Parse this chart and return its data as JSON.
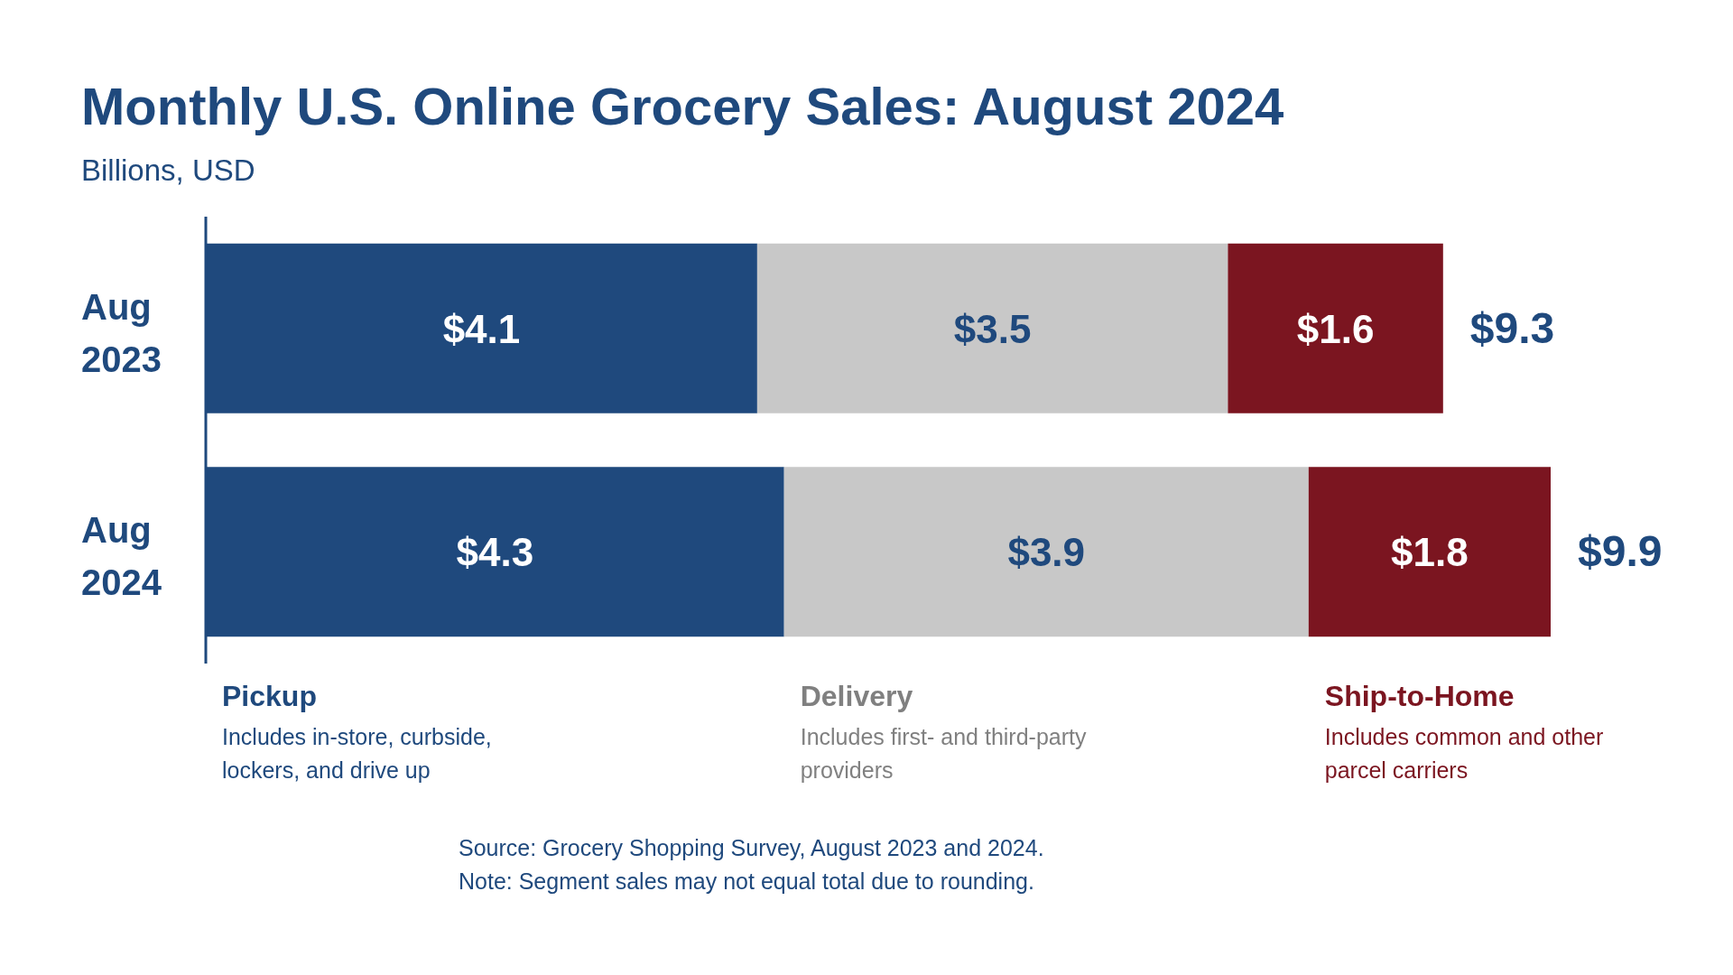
{
  "chart_data": {
    "type": "bar",
    "orientation": "horizontal",
    "stacked": true,
    "title": "Monthly U.S. Online Grocery Sales: August 2024",
    "subtitle": "Billions, USD",
    "categories": [
      "Aug 2023",
      "Aug 2024"
    ],
    "series": [
      {
        "name": "Pickup",
        "color": "#1f497d",
        "values": [
          4.1,
          4.3
        ],
        "value_labels": [
          "$4.1",
          "$4.3"
        ]
      },
      {
        "name": "Delivery",
        "color": "#c8c8c8",
        "values": [
          3.5,
          3.9
        ],
        "value_labels": [
          "$3.5",
          "$3.9"
        ]
      },
      {
        "name": "Ship-to-Home",
        "color": "#7b1520",
        "values": [
          1.6,
          1.8
        ],
        "value_labels": [
          "$1.6",
          "$1.8"
        ]
      }
    ],
    "totals": [
      "$9.3",
      "$9.9"
    ],
    "legend": "bottom",
    "annotations": [
      "Includes in-store, curbside, lockers, and drive up",
      "Includes first- and third-party providers",
      "Includes common and other parcel carriers",
      "Source: Grocery Shopping Survey, August 2023 and 2024.",
      "Note: Segment sales may not equal total due to rounding."
    ]
  }
}
